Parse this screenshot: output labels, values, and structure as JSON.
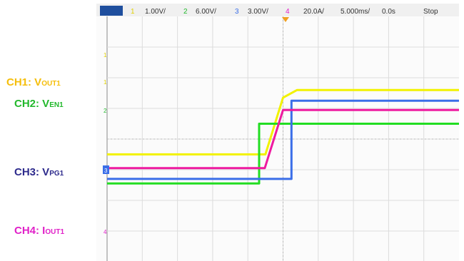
{
  "header": {
    "ch1_num": "1",
    "ch1_scale": "1.00V/",
    "ch2_num": "2",
    "ch2_scale": "6.00V/",
    "ch3_num": "3",
    "ch3_scale": "3.00V/",
    "ch4_num": "4",
    "ch4_scale": "20.0A/",
    "timebase": "5.000ms/",
    "delay": "0.0s",
    "status": "Stop"
  },
  "labels": {
    "ch1_main": "CH1: V",
    "ch1_sub": "OUT1",
    "ch2_main": "CH2: V",
    "ch2_sub": "EN1",
    "ch3_main": "CH3: V",
    "ch3_sub": "PG1",
    "ch4_main": "CH4: I",
    "ch4_sub": "OUT1"
  },
  "colors": {
    "ch1": "#f2f200",
    "ch2": "#22dd22",
    "ch3": "#3a6ee8",
    "ch4": "#ee1aa0",
    "ch1_label": "#f5be0a",
    "ch2_label": "#22b82c",
    "ch3_label": "#2d2a8c",
    "ch4_label": "#e020c8"
  },
  "chart_data": {
    "type": "line",
    "x_unit": "ms",
    "xlim": [
      -25,
      25
    ],
    "grid": true,
    "series": [
      {
        "name": "CH1: VOUT1",
        "x": [
          -25,
          -2.5,
          0,
          2,
          25
        ],
        "y": [
          -0.5,
          -0.5,
          1.35,
          1.6,
          1.6
        ]
      },
      {
        "name": "CH2: VEN1",
        "x": [
          -25,
          -3.4,
          -3.4,
          25
        ],
        "y": [
          -1.45,
          -1.45,
          0.5,
          0.5
        ]
      },
      {
        "name": "CH3: VPG1",
        "x": [
          -25,
          1.2,
          1.2,
          25
        ],
        "y": [
          -1.3,
          -1.3,
          1.25,
          1.25
        ]
      },
      {
        "name": "CH4: IOUT1",
        "x": [
          -25,
          -2.6,
          0,
          25
        ],
        "y": [
          -0.95,
          -0.95,
          0.95,
          0.95
        ]
      }
    ]
  }
}
